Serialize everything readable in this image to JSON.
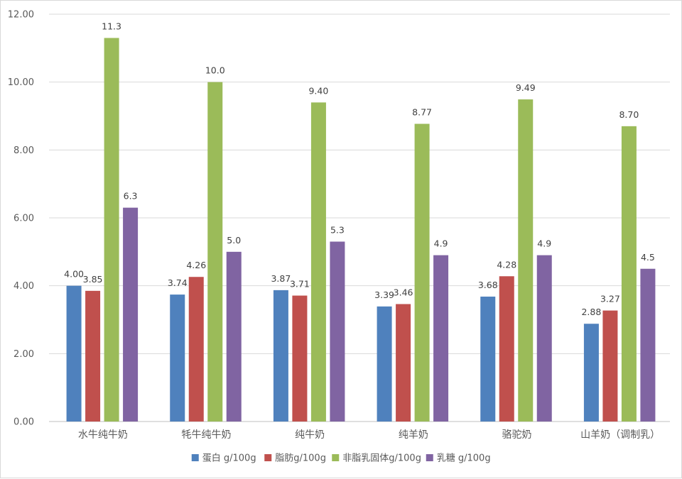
{
  "chart_data": {
    "type": "bar",
    "title": "",
    "xlabel": "",
    "ylabel": "",
    "ylim": [
      0,
      12
    ],
    "yticks": [
      "0.00",
      "2.00",
      "4.00",
      "6.00",
      "8.00",
      "10.00",
      "12.00"
    ],
    "grid": true,
    "legend_position": "bottom",
    "categories": [
      "水牛纯牛奶",
      "牦牛纯牛奶",
      "纯牛奶",
      "纯羊奶",
      "骆驼奶",
      "山羊奶（调制乳）"
    ],
    "series": [
      {
        "name": "蛋白 g/100g",
        "color": "#4f81bd",
        "values": [
          4.0,
          3.74,
          3.87,
          3.39,
          3.68,
          2.88
        ],
        "labels": [
          "4.00",
          "3.74",
          "3.87",
          "3.39",
          "3.68",
          "2.88"
        ]
      },
      {
        "name": "脂肪g/100g",
        "color": "#c0504d",
        "values": [
          3.85,
          4.26,
          3.71,
          3.46,
          4.28,
          3.27
        ],
        "labels": [
          "3.85",
          "4.26",
          "3.71",
          "3.46",
          "4.28",
          "3.27"
        ]
      },
      {
        "name": "非脂乳固体g/100g",
        "color": "#9bbb59",
        "values": [
          11.3,
          10.0,
          9.4,
          8.77,
          9.49,
          8.7
        ],
        "labels": [
          "11.3",
          "10.0",
          "9.40",
          "8.77",
          "9.49",
          "8.70"
        ]
      },
      {
        "name": "乳糖 g/100g",
        "color": "#8064a2",
        "values": [
          6.3,
          5.0,
          5.3,
          4.9,
          4.9,
          4.5
        ],
        "labels": [
          "6.3",
          "5.0",
          "5.3",
          "4.9",
          "4.9",
          "4.5"
        ]
      }
    ]
  }
}
